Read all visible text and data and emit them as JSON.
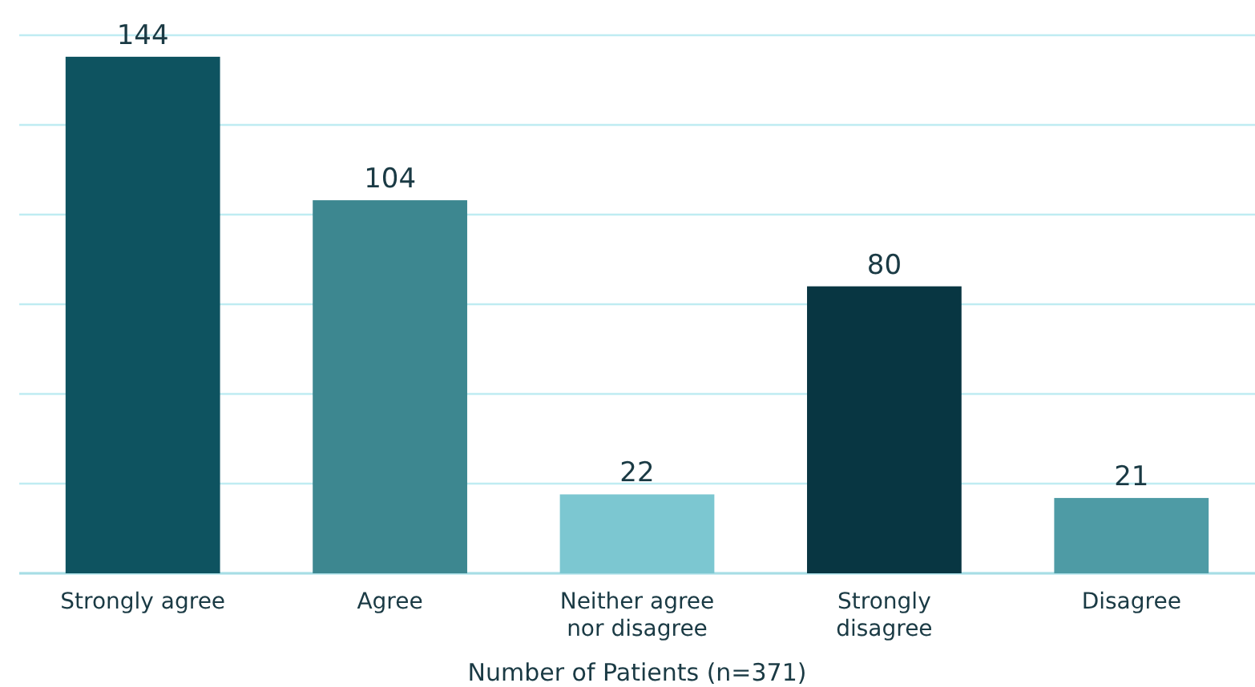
{
  "chart_data": {
    "type": "bar",
    "xlabel": "Number of Patients (n=371)",
    "categories": [
      "Strongly agree",
      "Agree",
      "Neither agree nor disagree",
      "Strongly disagree",
      "Disagree"
    ],
    "values": [
      144,
      104,
      22,
      80,
      21
    ],
    "colors": [
      "#0e5360",
      "#3d8790",
      "#7cc7d1",
      "#083642",
      "#4e9ba5"
    ],
    "ylim": [
      0,
      150
    ],
    "yticks": [
      {
        "value": 0,
        "label": null
      },
      {
        "value": 25,
        "label": null
      },
      {
        "value": 50,
        "label": null
      },
      {
        "value": 75,
        "label": null
      },
      {
        "value": 100,
        "label": null
      },
      {
        "value": 125,
        "label": null
      },
      {
        "value": 150,
        "label": null
      }
    ],
    "tick_labels": "x",
    "grid": "y",
    "data_labels": true
  }
}
